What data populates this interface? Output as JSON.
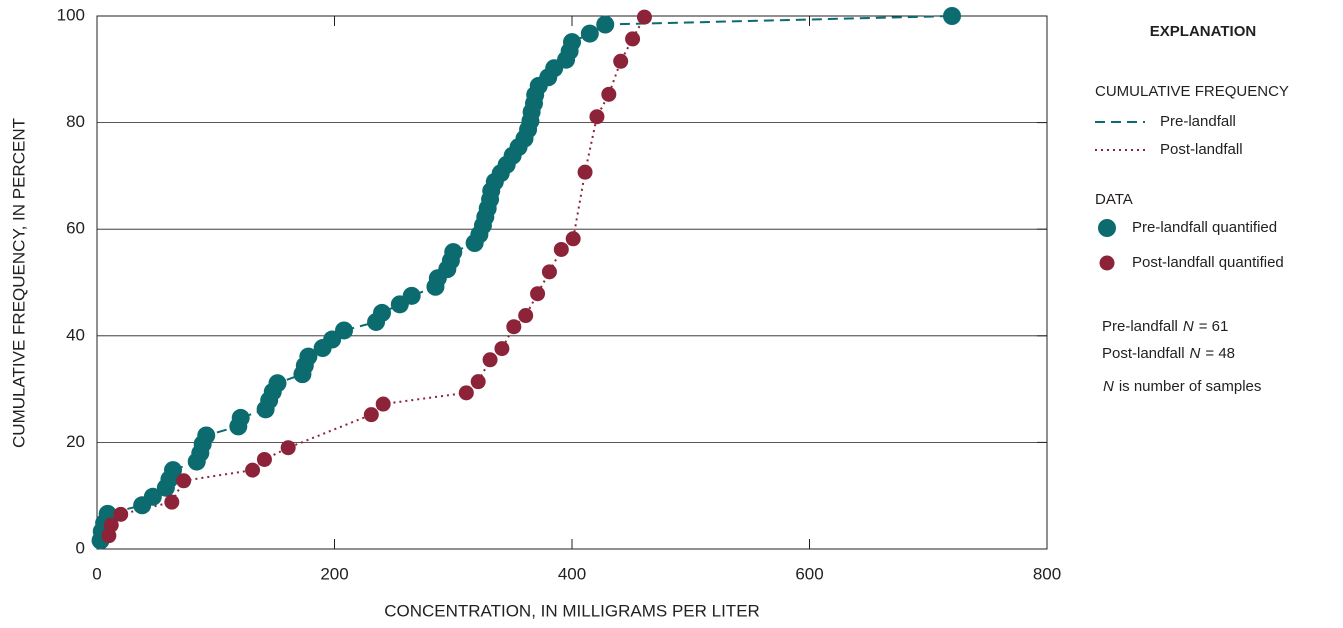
{
  "chart_data": {
    "type": "scatter",
    "xlabel": "CONCENTRATION, IN MILLIGRAMS PER LITER",
    "ylabel": "CUMULATIVE FREQUENCY, IN PERCENT",
    "xlim": [
      0,
      800
    ],
    "ylim": [
      0,
      100
    ],
    "xticks": [
      0,
      200,
      400,
      600,
      800
    ],
    "yticks": [
      0,
      20,
      40,
      60,
      80,
      100
    ],
    "grid": true,
    "legend": {
      "title": "EXPLANATION",
      "line_heading": "CUMULATIVE FREQUENCY",
      "data_heading": "DATA",
      "notes": [
        {
          "text": "Pre-landfall",
          "var": "N",
          "rest": "= 61"
        },
        {
          "text": "Post-landfall",
          "var": "N",
          "rest": "= 48"
        },
        {
          "text": "",
          "var": "N",
          "rest": "is number of samples"
        }
      ]
    },
    "series": [
      {
        "name": "Pre-landfall quantified",
        "line_name": "Pre-landfall",
        "color": "#0b6b6e",
        "line_style": "dashed",
        "x": [
          3,
          4,
          6,
          9,
          38,
          47,
          58,
          61,
          64,
          84,
          87,
          89,
          92,
          119,
          121,
          142,
          145,
          148,
          152,
          173,
          175,
          178,
          190,
          198,
          208,
          235,
          240,
          255,
          265,
          285,
          287,
          295,
          298,
          300,
          318,
          322,
          325,
          327,
          329,
          331,
          332,
          335,
          340,
          345,
          350,
          355,
          360,
          363,
          365,
          366,
          368,
          369,
          372,
          380,
          385,
          395,
          398,
          400,
          415,
          428,
          720
        ],
        "values": [
          1.6,
          3.3,
          4.9,
          6.6,
          8.2,
          9.8,
          11.5,
          13.1,
          14.8,
          16.4,
          18,
          19.7,
          21.3,
          23,
          24.6,
          26.2,
          27.9,
          29.5,
          31.1,
          32.8,
          34.4,
          36.1,
          37.7,
          39.3,
          41,
          42.6,
          44.3,
          45.9,
          47.5,
          49.2,
          50.8,
          52.5,
          54.1,
          55.7,
          57.4,
          59,
          60.7,
          62.3,
          63.9,
          65.6,
          67.2,
          68.9,
          70.5,
          72.1,
          73.8,
          75.4,
          77,
          78.7,
          80.3,
          82,
          83.6,
          85.2,
          86.9,
          88.5,
          90.2,
          91.8,
          93.4,
          95.1,
          96.7,
          98.4,
          100
        ]
      },
      {
        "name": "Post-landfall quantified",
        "line_name": "Post-landfall",
        "color": "#8c2338",
        "line_style": "dotted",
        "x": [
          10,
          12,
          20,
          63,
          73,
          131,
          141,
          161,
          231,
          241,
          311,
          321,
          331,
          341,
          351,
          361,
          371,
          381,
          391,
          401,
          411,
          421,
          431,
          441,
          451,
          461
        ],
        "values": [
          2.5,
          4.5,
          6.5,
          8.8,
          12.8,
          14.8,
          16.8,
          19,
          25.2,
          27.2,
          29.3,
          31.4,
          35.5,
          37.6,
          41.7,
          43.8,
          47.9,
          52,
          56.2,
          58.2,
          70.7,
          81.1,
          85.3,
          91.5,
          95.7,
          99.8
        ]
      }
    ]
  }
}
